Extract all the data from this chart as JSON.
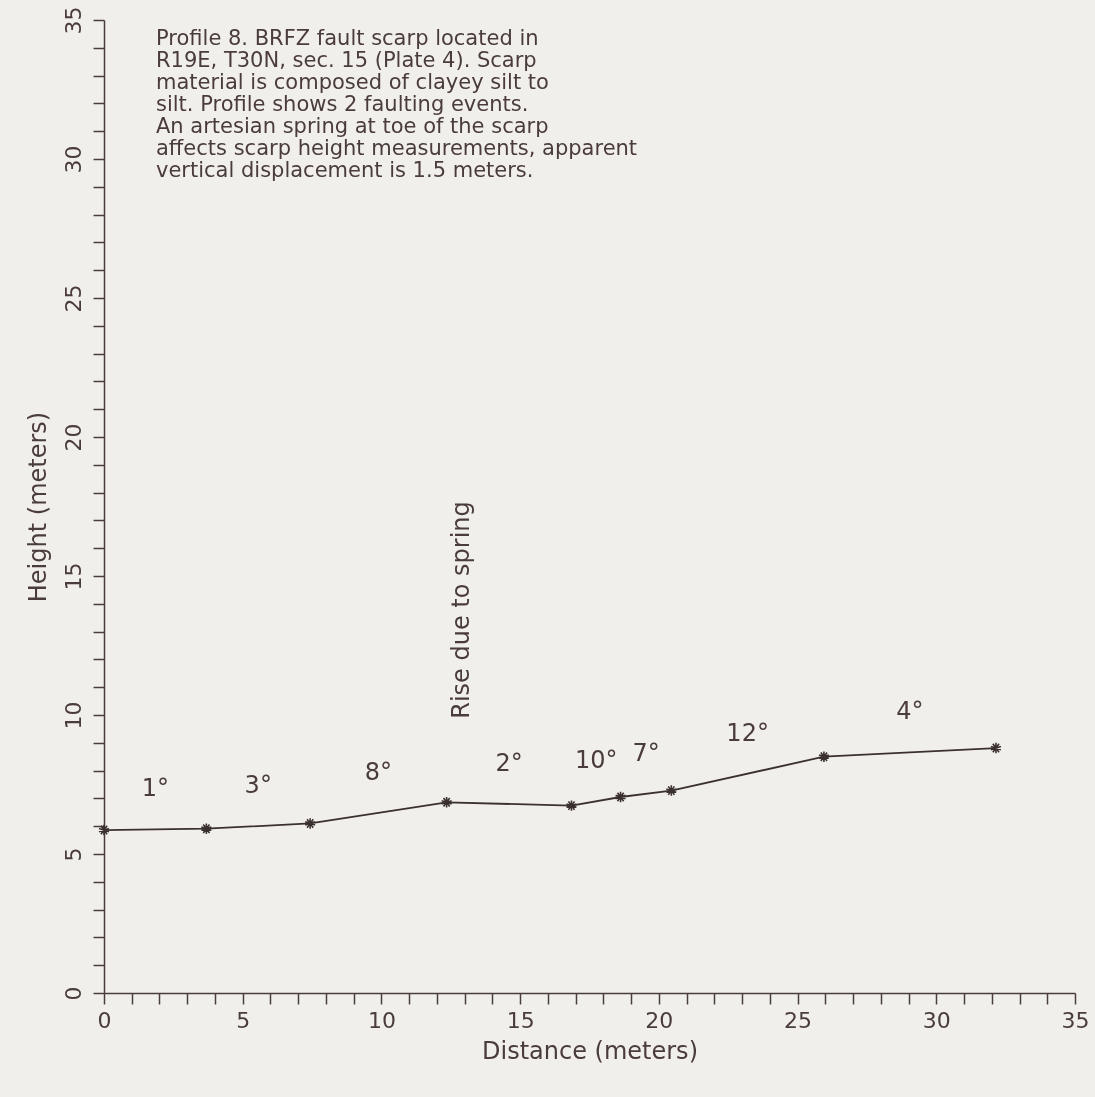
{
  "chart_data": {
    "type": "line",
    "xlabel": "Distance (meters)",
    "ylabel": "Height (meters)",
    "x": [
      0,
      3.69,
      7.43,
      12.35,
      16.85,
      18.62,
      20.45,
      25.95,
      32.15
    ],
    "series": [
      {
        "color": "#3a3030",
        "values": [
          5.86,
          5.91,
          6.1,
          6.86,
          6.74,
          7.05,
          7.28,
          8.5,
          8.81
        ]
      }
    ],
    "marker": "cross",
    "line_style": "solid",
    "grid": false,
    "xlim": [
      0,
      35
    ],
    "ylim": [
      0,
      35
    ],
    "xticks": [
      0,
      {
        "value": 1,
        "label": null
      },
      {
        "value": 2,
        "label": null
      },
      {
        "value": 3,
        "label": null
      },
      {
        "value": 4,
        "label": null
      },
      5,
      {
        "value": 6,
        "label": null
      },
      {
        "value": 7,
        "label": null
      },
      {
        "value": 8,
        "label": null
      },
      {
        "value": 9,
        "label": null
      },
      10,
      {
        "value": 11,
        "label": null
      },
      {
        "value": 12,
        "label": null
      },
      {
        "value": 13,
        "label": null
      },
      {
        "value": 14,
        "label": null
      },
      15,
      {
        "value": 16,
        "label": null
      },
      {
        "value": 17,
        "label": null
      },
      {
        "value": 18,
        "label": null
      },
      {
        "value": 19,
        "label": null
      },
      20,
      {
        "value": 21,
        "label": null
      },
      {
        "value": 22,
        "label": null
      },
      {
        "value": 23,
        "label": null
      },
      {
        "value": 24,
        "label": null
      },
      25,
      {
        "value": 26,
        "label": null
      },
      {
        "value": 27,
        "label": null
      },
      {
        "value": 28,
        "label": null
      },
      {
        "value": 29,
        "label": null
      },
      30,
      {
        "value": 31,
        "label": null
      },
      {
        "value": 32,
        "label": null
      },
      {
        "value": 33,
        "label": null
      },
      {
        "value": 34,
        "label": null
      },
      35
    ],
    "yticks": [
      0,
      {
        "value": 1,
        "label": null
      },
      {
        "value": 2,
        "label": null
      },
      {
        "value": 3,
        "label": null
      },
      {
        "value": 4,
        "label": null
      },
      5,
      {
        "value": 6,
        "label": null
      },
      {
        "value": 7,
        "label": null
      },
      {
        "value": 8,
        "label": null
      },
      {
        "value": 9,
        "label": null
      },
      10,
      {
        "value": 11,
        "label": null
      },
      {
        "value": 12,
        "label": null
      },
      {
        "value": 13,
        "label": null
      },
      {
        "value": 14,
        "label": null
      },
      15,
      {
        "value": 16,
        "label": null
      },
      {
        "value": 17,
        "label": null
      },
      {
        "value": 18,
        "label": null
      },
      {
        "value": 19,
        "label": null
      },
      20,
      {
        "value": 21,
        "label": null
      },
      {
        "value": 22,
        "label": null
      },
      {
        "value": 23,
        "label": null
      },
      {
        "value": 24,
        "label": null
      },
      25,
      {
        "value": 26,
        "label": null
      },
      {
        "value": 27,
        "label": null
      },
      {
        "value": 28,
        "label": null
      },
      {
        "value": 29,
        "label": null
      },
      30,
      {
        "value": 31,
        "label": null
      },
      {
        "value": 32,
        "label": null
      },
      {
        "value": 33,
        "label": null
      },
      {
        "value": 34,
        "label": null
      },
      35
    ],
    "annotations": [
      "Profile 8.  BRFZ fault scarp located in\nR19E, T30N, sec. 15 (Plate 4).  Scarp\nmaterial is composed of clayey silt to\nsilt.  Profile shows 2 faulting events.\nAn artesian spring at toe of the scarp\naffects scarp height measurements, apparent\nvertical displacement is 1.5 meters.",
      "Rise due to spring",
      {
        "text": "1°",
        "x": 1.85,
        "y": 5.89
      },
      {
        "text": "3°",
        "x": 5.56,
        "y": 6.0
      },
      {
        "text": "8°",
        "x": 9.89,
        "y": 6.48
      },
      {
        "text": "2°",
        "x": 14.6,
        "y": 6.8
      },
      {
        "text": "10°",
        "x": 17.74,
        "y": 6.9
      },
      {
        "text": "7°",
        "x": 19.54,
        "y": 7.17
      },
      {
        "text": "12°",
        "x": 23.2,
        "y": 7.89
      },
      {
        "text": "4°",
        "x": 29.05,
        "y": 8.66
      }
    ]
  }
}
